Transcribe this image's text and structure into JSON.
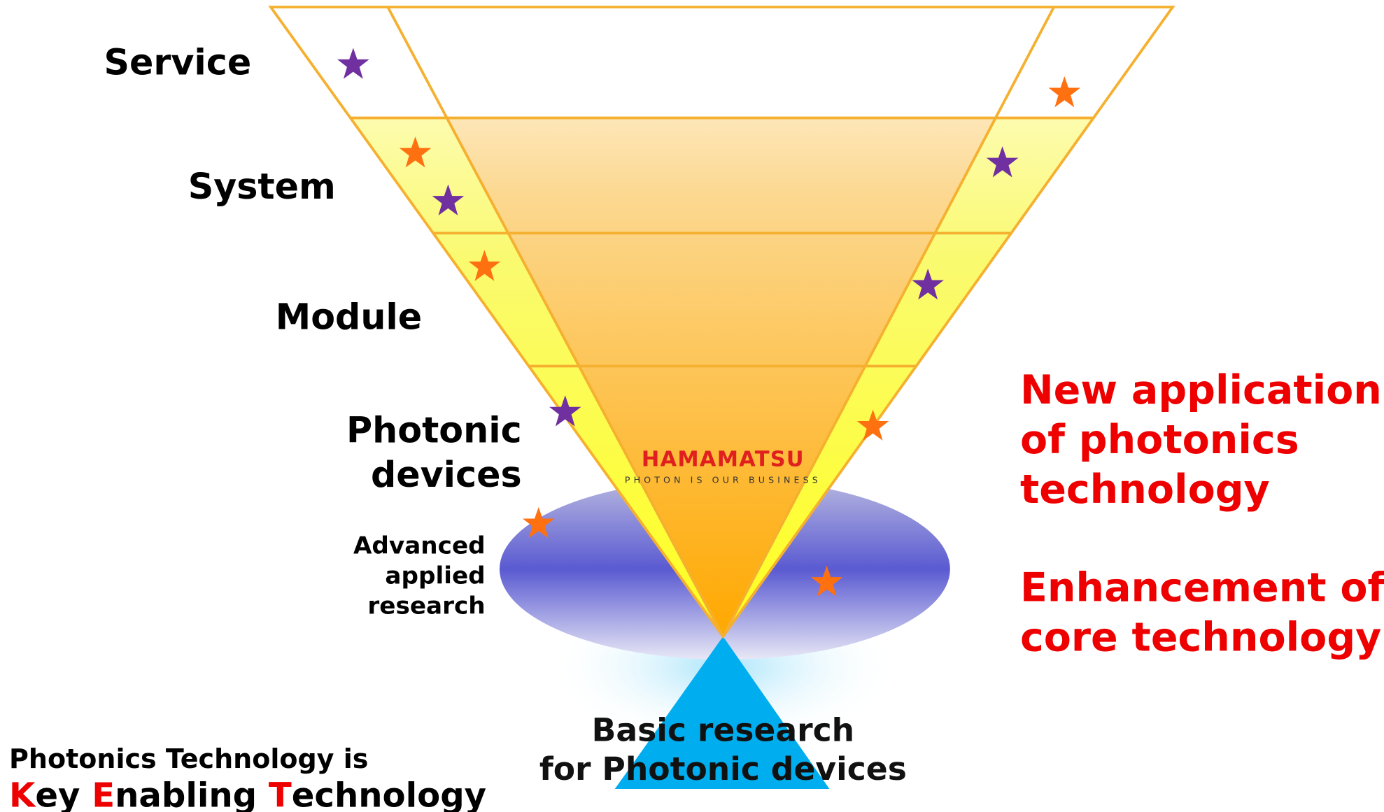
{
  "layers": [
    "Service",
    "System",
    "Module",
    "Photonic",
    "devices"
  ],
  "advanced": [
    "Advanced",
    "applied",
    "research"
  ],
  "logo": {
    "name": "HAMAMATSU",
    "tagline": "PHOTON IS OUR BUSINESS"
  },
  "right_text": {
    "application": [
      "New application",
      "of photonics",
      "technology"
    ],
    "enhancement": [
      "Enhancement of",
      "core technology"
    ]
  },
  "basic": [
    "Basic research",
    "for Photonic devices"
  ],
  "note": {
    "line1": "Photonics Technology is",
    "line2": [
      "K",
      "ey ",
      "E",
      "nabling ",
      "T",
      "echnology"
    ]
  }
}
